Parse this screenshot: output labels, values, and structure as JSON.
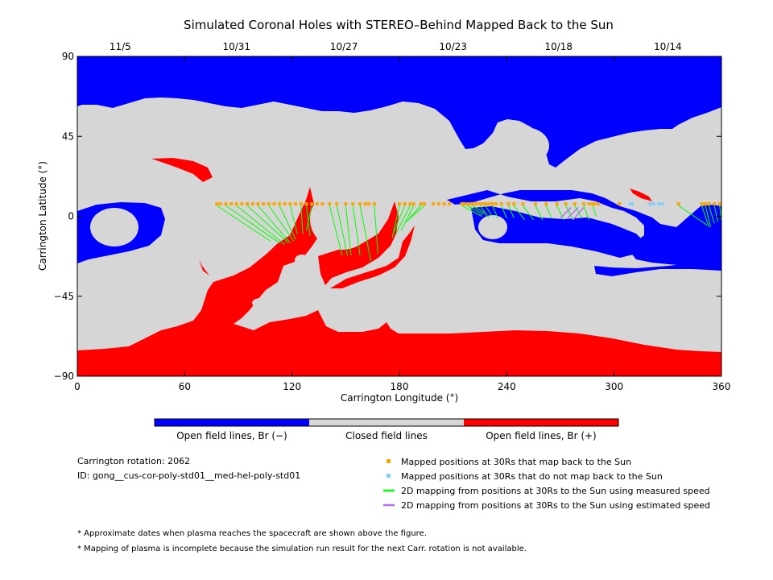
{
  "chart_data": {
    "type": "heatmap",
    "title": "Simulated Coronal Holes with STEREO–Behind Mapped Back to the Sun",
    "xlabel": "Carrington Longitude (°)",
    "ylabel": "Carrington Latitude (°)",
    "xlim": [
      0,
      360
    ],
    "ylim": [
      -90,
      90
    ],
    "x_ticks": [
      0,
      60,
      120,
      180,
      240,
      300,
      360
    ],
    "y_ticks": [
      -90,
      -45,
      0,
      45,
      90
    ],
    "top_axis_date_labels": [
      {
        "lon": 24,
        "date": "11/5"
      },
      {
        "lon": 89,
        "date": "10/31"
      },
      {
        "lon": 149,
        "date": "10/27"
      },
      {
        "lon": 210,
        "date": "10/23"
      },
      {
        "lon": 269,
        "date": "10/18"
      },
      {
        "lon": 330,
        "date": "10/14"
      }
    ],
    "colorbar": [
      {
        "label": "Open field lines, Br (−)",
        "color": "#0000ff"
      },
      {
        "label": "Closed field lines",
        "color": "#d6d6d6"
      },
      {
        "label": "Open field lines, Br (+)",
        "color": "#ff0000"
      }
    ],
    "series": [
      {
        "name": "Mapped positions at 30Rs that map back to the Sun",
        "color": "#ffa500",
        "lat": 7,
        "lon": [
          78,
          80,
          83,
          86,
          89,
          92,
          95,
          98,
          101,
          104,
          107,
          110,
          113,
          116,
          119,
          122,
          125,
          128,
          131,
          134,
          137,
          141,
          145,
          150,
          154,
          158,
          161,
          163,
          166,
          180,
          183,
          186,
          188,
          192,
          194,
          199,
          202,
          205,
          208,
          215,
          216,
          218,
          220,
          221,
          223,
          225,
          227,
          228,
          230,
          232,
          234,
          237,
          241,
          244,
          249,
          256,
          262,
          268,
          273,
          278,
          283,
          286,
          288,
          289,
          291,
          303,
          336,
          349,
          351,
          353,
          356,
          359
        ]
      },
      {
        "name": "Mapped positions at 30Rs that do not map back to the Sun",
        "color": "#87cefa",
        "lat": 7,
        "lon": [
          309,
          310,
          320,
          322,
          325,
          327
        ]
      },
      {
        "name": "2D mapping from positions at 30Rs to the Sun using measured speed",
        "color": "#00ff00",
        "pairs": [
          [
            78,
            6,
            108,
            -14
          ],
          [
            83,
            6,
            113,
            -15
          ],
          [
            89,
            6,
            116,
            -16
          ],
          [
            95,
            6,
            118,
            -15
          ],
          [
            101,
            6,
            119,
            -15
          ],
          [
            107,
            6,
            121,
            -14
          ],
          [
            113,
            6,
            122,
            -13
          ],
          [
            119,
            6,
            123,
            -10
          ],
          [
            125,
            6,
            126,
            -10
          ],
          [
            128,
            6,
            130,
            -11
          ],
          [
            131,
            6,
            128,
            -8
          ],
          [
            141,
            6,
            148,
            -22
          ],
          [
            145,
            6,
            151,
            -22
          ],
          [
            150,
            6,
            153,
            -22
          ],
          [
            154,
            6,
            158,
            -22
          ],
          [
            158,
            6,
            164,
            -25
          ],
          [
            166,
            6,
            168,
            -21
          ],
          [
            180,
            6,
            176,
            -12
          ],
          [
            183,
            6,
            176,
            -11
          ],
          [
            186,
            6,
            178,
            -10
          ],
          [
            188,
            6,
            181,
            -8
          ],
          [
            192,
            6,
            184,
            -3
          ],
          [
            194,
            6,
            185,
            -2
          ],
          [
            215,
            6,
            226,
            0
          ],
          [
            218,
            6,
            227,
            1
          ],
          [
            221,
            6,
            229,
            1
          ],
          [
            225,
            6,
            230,
            -1
          ],
          [
            228,
            6,
            232,
            0
          ],
          [
            232,
            6,
            235,
            -1
          ],
          [
            237,
            6,
            240,
            -1
          ],
          [
            241,
            6,
            244,
            -1
          ],
          [
            244,
            6,
            250,
            -2
          ],
          [
            249,
            6,
            255,
            -2
          ],
          [
            256,
            6,
            260,
            -2
          ],
          [
            262,
            6,
            265,
            -1
          ],
          [
            268,
            6,
            272,
            -2
          ],
          [
            273,
            6,
            277,
            -2
          ],
          [
            278,
            6,
            282,
            -1
          ],
          [
            283,
            6,
            286,
            -2
          ],
          [
            288,
            6,
            290,
            0
          ],
          [
            336,
            6,
            352,
            -5
          ],
          [
            349,
            6,
            353,
            -6
          ],
          [
            351,
            6,
            354,
            -6
          ],
          [
            353,
            6,
            356,
            -4
          ],
          [
            356,
            6,
            358,
            -3
          ],
          [
            359,
            6,
            360,
            -3
          ]
        ]
      },
      {
        "name": "2D mapping from positions at 30Rs to the Sun using estimated speed",
        "color": "#b070f0",
        "pairs": [
          [
            276,
            5,
            270,
            -1
          ],
          [
            280,
            5,
            274,
            -1
          ],
          [
            283,
            5,
            277,
            -2
          ]
        ]
      }
    ]
  },
  "info": {
    "carrington_rotation": "Carrington rotation: 2062",
    "id": "ID: gong__cus-cor-poly-std01__med-hel-poly-std01",
    "note1": "* Approximate dates when plasma reaches the spacecraft are shown above the figure.",
    "note2": "* Mapping of plasma is incomplete because the simulation run result for the next Carr. rotation is not available."
  }
}
